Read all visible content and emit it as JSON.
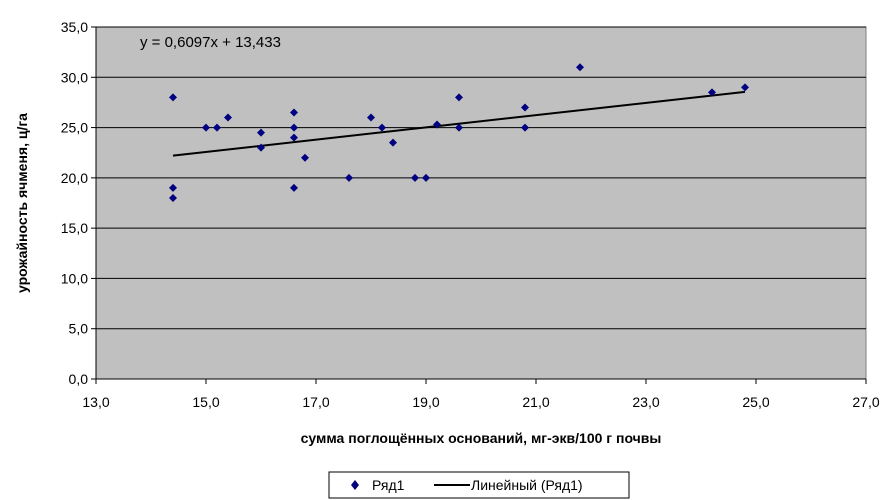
{
  "chart_data": {
    "type": "scatter",
    "title": "",
    "xlabel": "сумма поглощённых оснований, мг-экв/100 г почвы",
    "ylabel": "урожайность ячменя, ц/га",
    "xlim": [
      13.0,
      27.0
    ],
    "ylim": [
      0.0,
      35.0
    ],
    "x_ticks": [
      "13,0",
      "15,0",
      "17,0",
      "19,0",
      "21,0",
      "23,0",
      "25,0",
      "27,0"
    ],
    "y_ticks": [
      "0,0",
      "5,0",
      "10,0",
      "15,0",
      "20,0",
      "25,0",
      "30,0",
      "35,0"
    ],
    "grid": true,
    "legend_position": "bottom",
    "colors": {
      "plot_bg": "#c0c0c0",
      "marker": "#000080",
      "trendline": "#000000"
    },
    "series": [
      {
        "name": "Ряд1",
        "x": [
          14.4,
          14.4,
          14.4,
          15.0,
          15.2,
          15.4,
          16.0,
          16.0,
          16.6,
          16.6,
          16.6,
          16.6,
          16.8,
          17.6,
          18.0,
          18.2,
          18.4,
          18.8,
          19.0,
          19.2,
          19.6,
          19.6,
          20.8,
          20.8,
          21.8,
          24.2,
          24.8
        ],
        "y": [
          28.0,
          19.0,
          18.0,
          25.0,
          25.0,
          26.0,
          24.5,
          23.0,
          26.5,
          25.0,
          24.0,
          19.0,
          22.0,
          20.0,
          26.0,
          25.0,
          23.5,
          20.0,
          20.0,
          25.3,
          28.0,
          25.0,
          27.0,
          25.0,
          31.0,
          28.5,
          29.0
        ]
      }
    ],
    "trendline": {
      "name": "Линейный (Ряд1)",
      "slope": 0.6097,
      "intercept": 13.433,
      "x_range": [
        14.4,
        24.8
      ],
      "equation": "y = 0,6097x + 13,433"
    },
    "legend": [
      "Ряд1",
      "Линейный (Ряд1)"
    ]
  }
}
